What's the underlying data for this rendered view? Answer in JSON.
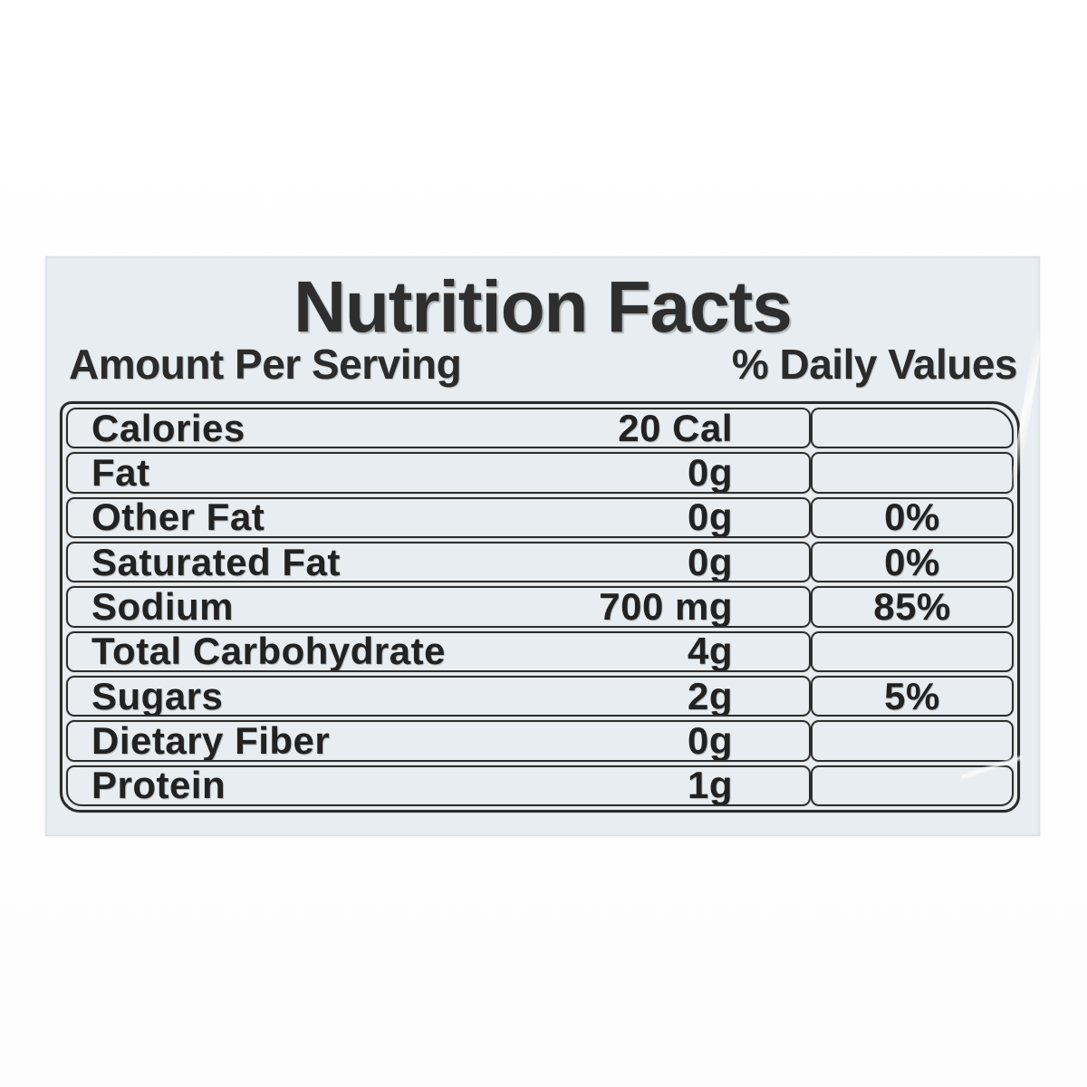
{
  "label": {
    "title": "Nutrition Facts",
    "amount_header": "Amount Per Serving",
    "daily_values_header": "% Daily Values",
    "colors": {
      "label_bg": "#e7edf0",
      "page_bg": "#fdfdfd",
      "ink": "#222222",
      "border": "#2d2d2d"
    },
    "rows": [
      {
        "name": "Calories",
        "value": "20 Cal",
        "percent": ""
      },
      {
        "name": "Fat",
        "value": "0g",
        "percent": ""
      },
      {
        "name": "Other Fat",
        "value": "0g",
        "percent": "0%"
      },
      {
        "name": "Saturated Fat",
        "value": "0g",
        "percent": "0%"
      },
      {
        "name": "Sodium",
        "value": "700 mg",
        "percent": "85%"
      },
      {
        "name": "Total Carbohydrate",
        "value": "4g",
        "percent": ""
      },
      {
        "name": "Sugars",
        "value": "2g",
        "percent": "5%"
      },
      {
        "name": "Dietary Fiber",
        "value": "0g",
        "percent": ""
      },
      {
        "name": "Protein",
        "value": "1g",
        "percent": ""
      }
    ]
  }
}
